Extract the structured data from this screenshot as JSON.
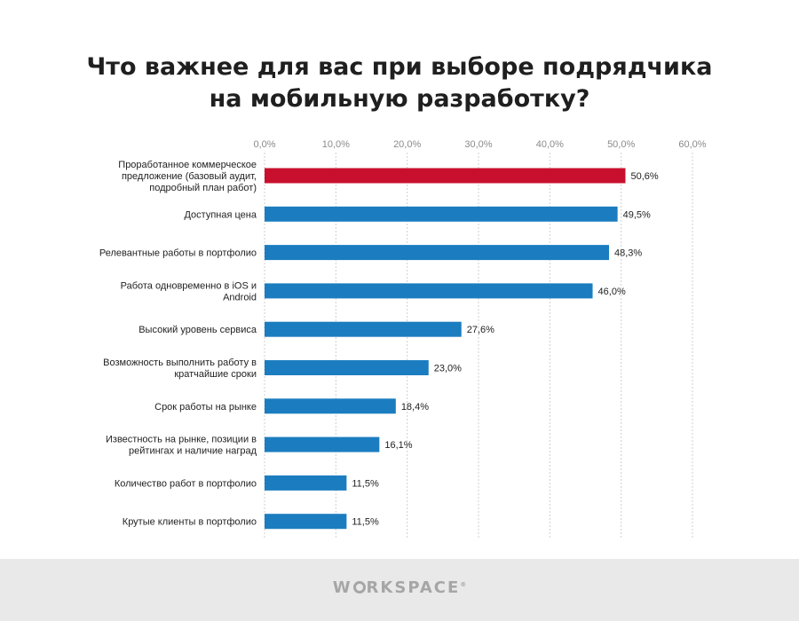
{
  "chart_data": {
    "type": "bar",
    "orientation": "horizontal",
    "title": [
      "Что важнее для вас при выборе подрядчика",
      "на мобильную разработку?"
    ],
    "xlim": [
      0,
      60
    ],
    "ticks": [
      "0,0%",
      "10,0%",
      "20,0%",
      "30,0%",
      "40,0%",
      "50,0%",
      "60,0%"
    ],
    "tick_values": [
      0,
      10,
      20,
      30,
      40,
      50,
      60
    ],
    "grid": "vertical-dashed",
    "categories": [
      [
        "Проработанное коммерческое",
        "предложение (базовый аудит,",
        "подробный план работ)"
      ],
      [
        "Доступная цена"
      ],
      [
        "Релевантные работы в портфолио"
      ],
      [
        "Работа одновременно в iOS и",
        "Android"
      ],
      [
        "Высокий уровень сервиса"
      ],
      [
        "Возможность выполнить работу в",
        "кратчайшие сроки"
      ],
      [
        "Срок работы на рынке"
      ],
      [
        "Известность на рынке, позиции в",
        "рейтингах и наличие наград"
      ],
      [
        "Количество работ в портфолио"
      ],
      [
        "Крутые клиенты в портфолио"
      ]
    ],
    "values": [
      50.6,
      49.5,
      48.3,
      46.0,
      27.6,
      23.0,
      18.4,
      16.1,
      11.5,
      11.5
    ],
    "value_labels": [
      "50,6%",
      "49,5%",
      "48,3%",
      "46,0%",
      "27,6%",
      "23,0%",
      "18,4%",
      "16,1%",
      "11,5%",
      "11,5%"
    ],
    "highlight_index": 0,
    "colors": {
      "highlight": "#c8102e",
      "bar": "#1b7dc0",
      "grid": "#cfcfcf"
    }
  },
  "footer": {
    "logo_pre": "W",
    "logo_post": "RKSPACE",
    "logo_tm": "®"
  }
}
